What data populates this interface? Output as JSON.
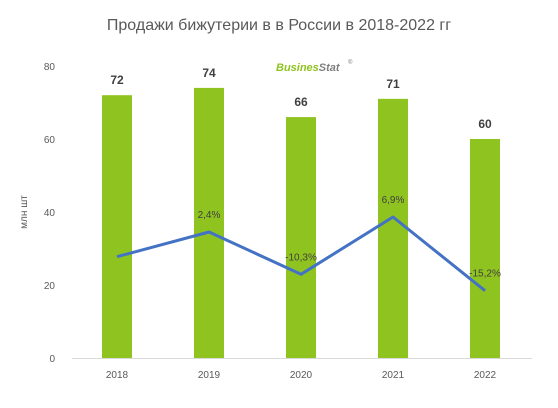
{
  "chart_data": {
    "type": "bar",
    "title": "Продажи бижутерии в в России в 2018-2022 гг",
    "ylabel": "млн шт",
    "xlabel": "",
    "ylim": [
      0,
      80
    ],
    "yticks": [
      "0",
      "20",
      "40",
      "60",
      "80"
    ],
    "categories": [
      "2018",
      "2019",
      "2020",
      "2021",
      "2022"
    ],
    "values": [
      72,
      74,
      66,
      71,
      60
    ],
    "value_labels": [
      "72",
      "74",
      "66",
      "71",
      "60"
    ],
    "growth": {
      "type": "line",
      "values": [
        null,
        2.4,
        -10.3,
        6.9,
        -15.2
      ],
      "labels": [
        "",
        "2,4%",
        "-10,3%",
        "6,9%",
        "-15,2%"
      ]
    },
    "grid": false,
    "legend": "none"
  },
  "logo": {
    "text_a": "Busines",
    "text_b": "Stat",
    "mark": "®"
  },
  "colors": {
    "bar": "#8FC31F",
    "line": "#4472C4",
    "text": "#595959",
    "logo_a": "#8FC31F",
    "logo_b": "#7F7F7F"
  }
}
